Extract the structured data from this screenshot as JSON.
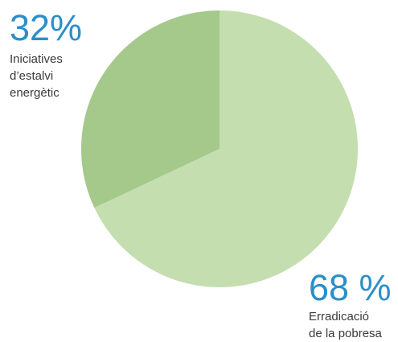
{
  "chart_data": {
    "type": "pie",
    "slices": [
      {
        "value": 32,
        "percent_label": "32%",
        "label": "Iniciatives\nd’estalvi\nenergètic",
        "color": "#a4c98a"
      },
      {
        "value": 68,
        "percent_label": "68 %",
        "label": "Erradicació\nde la pobresa",
        "color": "#c4deb0"
      }
    ],
    "start_angle_deg": 0,
    "direction": "counterclockwise",
    "legend": "none"
  }
}
